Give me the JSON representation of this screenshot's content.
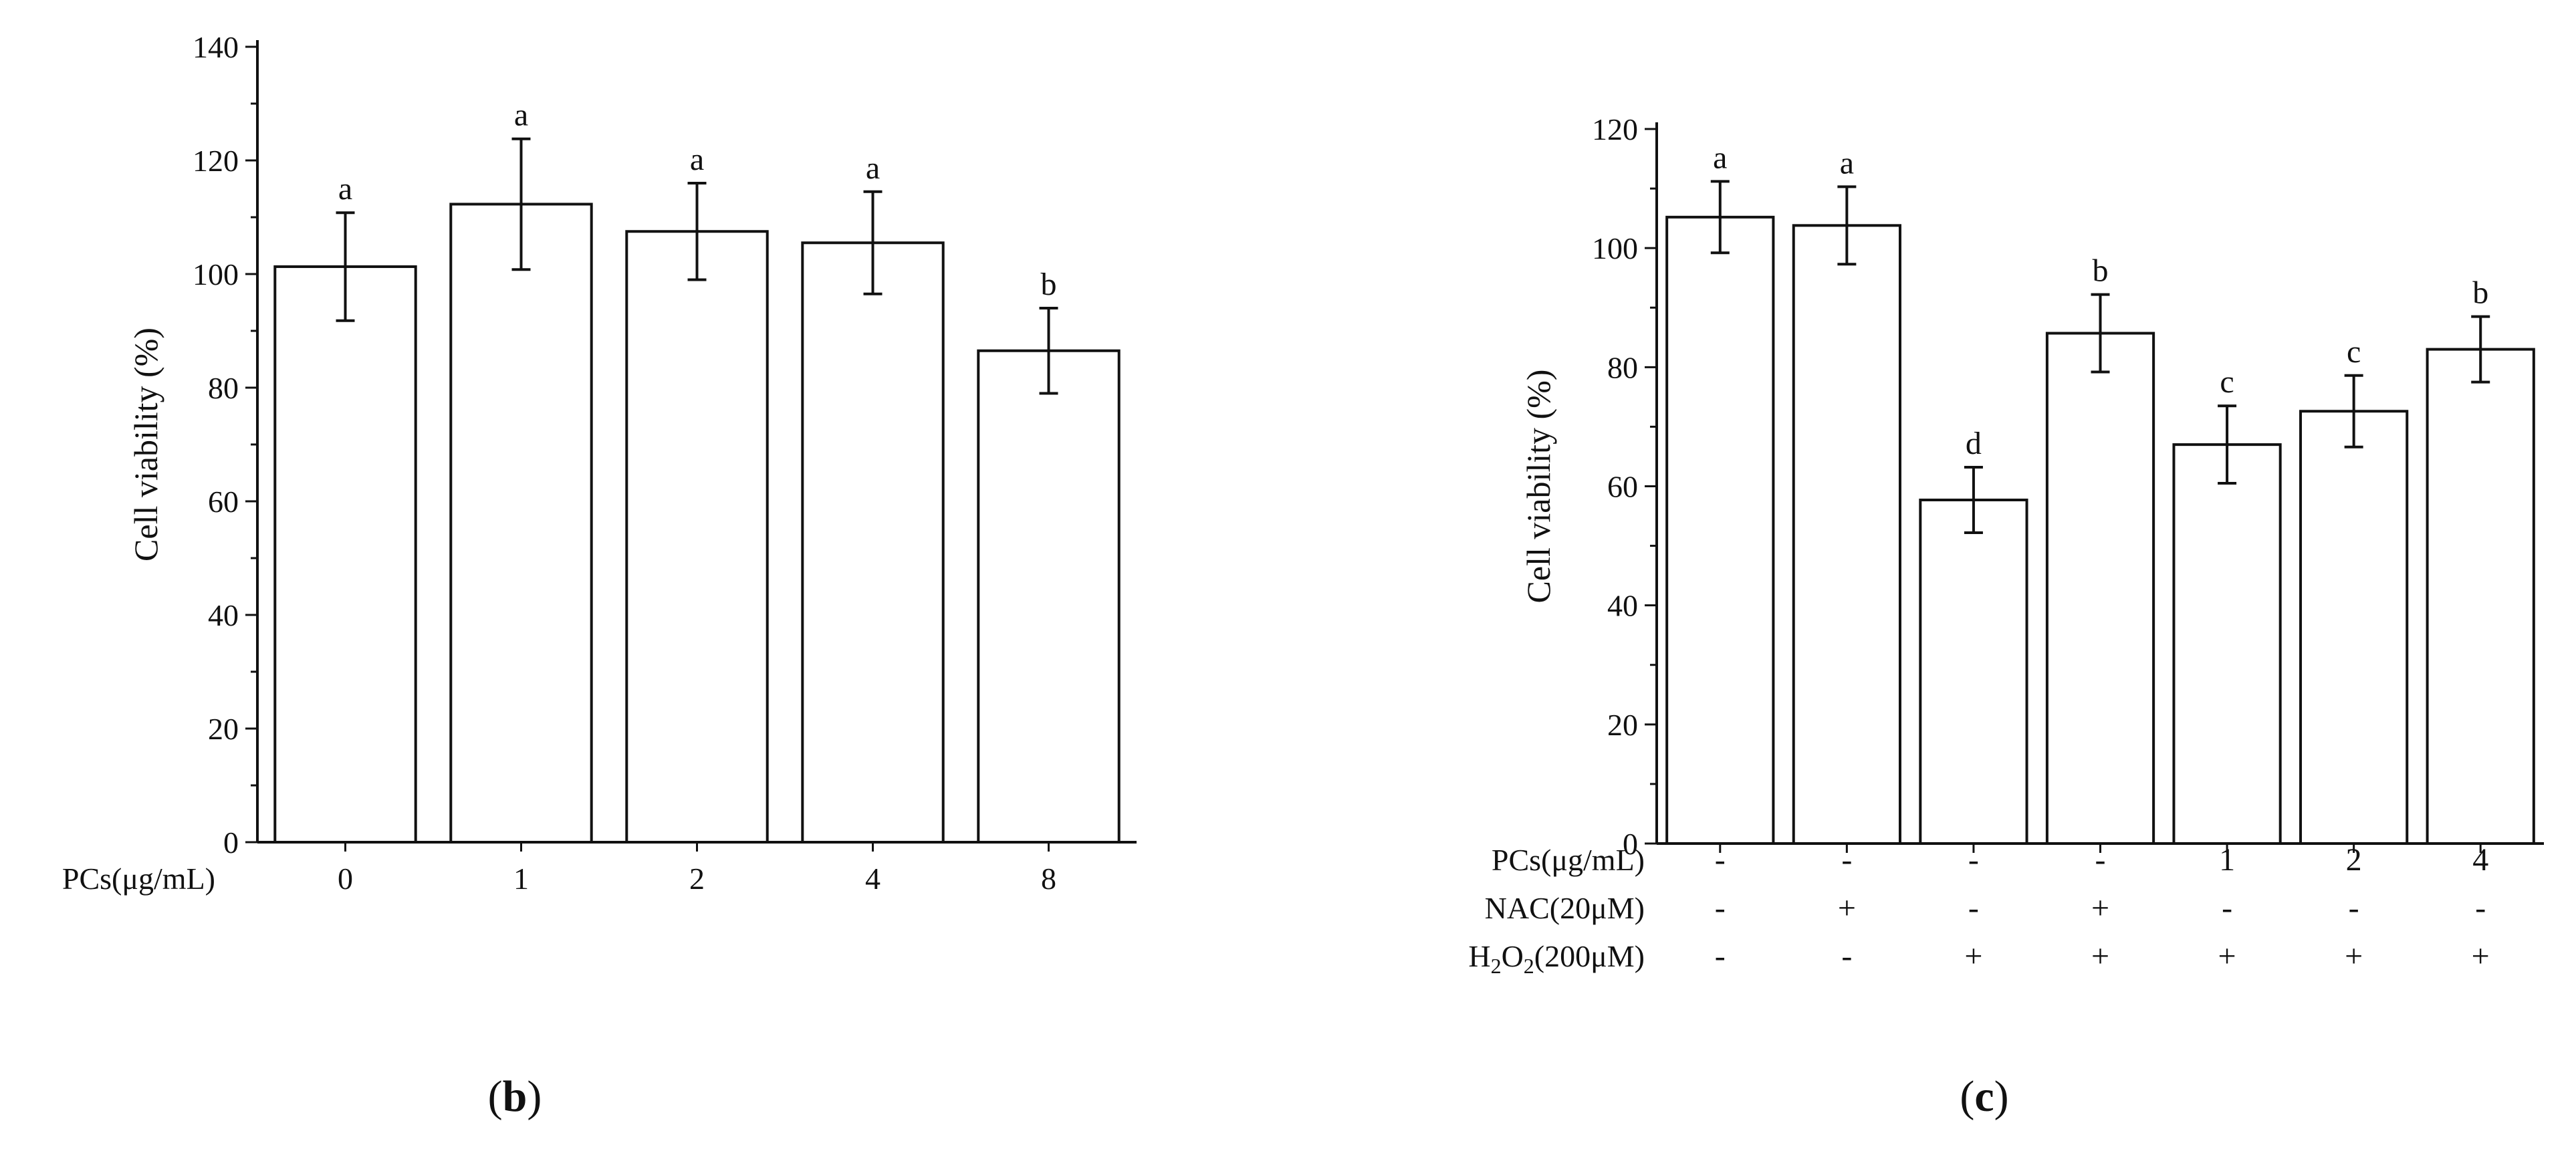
{
  "chart_data": [
    {
      "panel": "b",
      "type": "bar",
      "ylabel": "Cell viability (%)",
      "ylim": [
        0,
        140
      ],
      "yticks": [
        0,
        20,
        40,
        60,
        80,
        100,
        120,
        140
      ],
      "x_row_label": "PCs(μg/mL)",
      "categories": [
        "0",
        "1",
        "2",
        "4",
        "8"
      ],
      "values": [
        101.3,
        112.3,
        107.5,
        105.5,
        86.5
      ],
      "errors": [
        9.5,
        11.5,
        8.5,
        9.0,
        7.5
      ],
      "letters": [
        "a",
        "a",
        "a",
        "a",
        "b"
      ],
      "panel_label": {
        "open": "(",
        "letter": "b",
        "close": ")"
      }
    },
    {
      "panel": "c",
      "type": "bar",
      "ylabel": "Cell viability (%)",
      "ylim": [
        0,
        120
      ],
      "yticks": [
        0,
        20,
        40,
        60,
        80,
        100,
        120
      ],
      "values": [
        105.2,
        103.8,
        57.7,
        85.7,
        67.0,
        72.6,
        83.0
      ],
      "errors": [
        6.0,
        6.5,
        5.5,
        6.5,
        6.5,
        6.0,
        5.5
      ],
      "letters": [
        "a",
        "a",
        "d",
        "b",
        "c",
        "c",
        "b"
      ],
      "condition_rows": [
        {
          "label": "PCs(μg/mL)",
          "values": [
            "-",
            "-",
            "-",
            "-",
            "1",
            "2",
            "4"
          ]
        },
        {
          "label": "NAC(20μM)",
          "values": [
            "-",
            "+",
            "-",
            "+",
            "-",
            "-",
            "-"
          ]
        },
        {
          "label": "H",
          "sub1": "2",
          "label_mid": "O",
          "sub2": "2",
          "label_end": "(200μM)",
          "values": [
            "-",
            "-",
            "+",
            "+",
            "+",
            "+",
            "+"
          ]
        }
      ],
      "panel_label": {
        "open": "(",
        "letter": "c",
        "close": ")"
      }
    }
  ]
}
